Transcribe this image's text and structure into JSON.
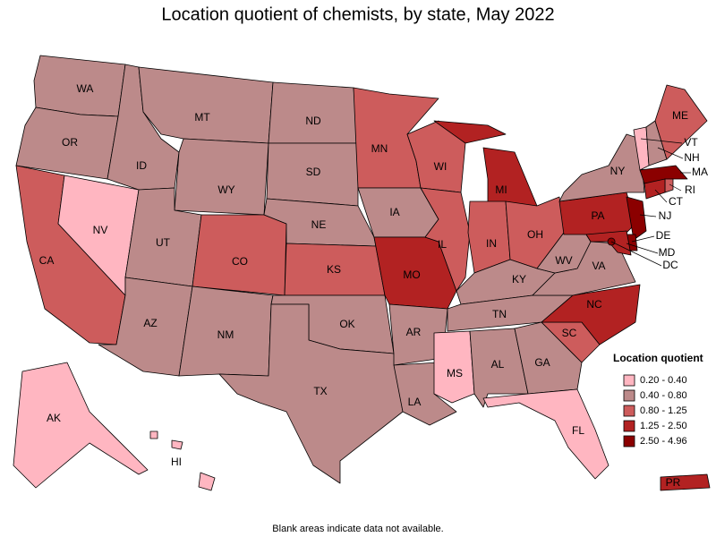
{
  "title": "Location quotient of chemists, by state, May 2022",
  "note": "Blank areas indicate data not available.",
  "legend": {
    "title": "Location quotient",
    "classes": [
      {
        "label": "0.20 - 0.40",
        "color": "#ffb6c1"
      },
      {
        "label": "0.40 - 0.80",
        "color": "#bc8a8a"
      },
      {
        "label": "0.80 - 1.25",
        "color": "#cd5c5c"
      },
      {
        "label": "1.25 - 2.50",
        "color": "#b22222"
      },
      {
        "label": "2.50 - 4.96",
        "color": "#8b0000"
      }
    ]
  },
  "states": [
    {
      "label": "WA",
      "class": 1
    },
    {
      "label": "OR",
      "class": 1
    },
    {
      "label": "CA",
      "class": 2
    },
    {
      "label": "NV",
      "class": 0
    },
    {
      "label": "ID",
      "class": 1
    },
    {
      "label": "MT",
      "class": 1
    },
    {
      "label": "WY",
      "class": 1
    },
    {
      "label": "UT",
      "class": 1
    },
    {
      "label": "AZ",
      "class": 1
    },
    {
      "label": "CO",
      "class": 2
    },
    {
      "label": "NM",
      "class": 1
    },
    {
      "label": "ND",
      "class": 1
    },
    {
      "label": "SD",
      "class": 1
    },
    {
      "label": "NE",
      "class": 1
    },
    {
      "label": "KS",
      "class": 2
    },
    {
      "label": "OK",
      "class": 1
    },
    {
      "label": "TX",
      "class": 1
    },
    {
      "label": "MN",
      "class": 2
    },
    {
      "label": "IA",
      "class": 1
    },
    {
      "label": "MO",
      "class": 3
    },
    {
      "label": "AR",
      "class": 1
    },
    {
      "label": "LA",
      "class": 1
    },
    {
      "label": "WI",
      "class": 2
    },
    {
      "label": "IL",
      "class": 2
    },
    {
      "label": "MI",
      "class": 3
    },
    {
      "label": "IN",
      "class": 2
    },
    {
      "label": "OH",
      "class": 2
    },
    {
      "label": "KY",
      "class": 1
    },
    {
      "label": "TN",
      "class": 1
    },
    {
      "label": "MS",
      "class": 0
    },
    {
      "label": "AL",
      "class": 1
    },
    {
      "label": "GA",
      "class": 1
    },
    {
      "label": "FL",
      "class": 0
    },
    {
      "label": "SC",
      "class": 2
    },
    {
      "label": "NC",
      "class": 3
    },
    {
      "label": "VA",
      "class": 1
    },
    {
      "label": "WV",
      "class": 1
    },
    {
      "label": "PA",
      "class": 3
    },
    {
      "label": "NY",
      "class": 1
    },
    {
      "label": "VT",
      "class": 0
    },
    {
      "label": "NH",
      "class": 1
    },
    {
      "label": "ME",
      "class": 2
    },
    {
      "label": "MA",
      "class": 4
    },
    {
      "label": "RI",
      "class": 2
    },
    {
      "label": "CT",
      "class": 3
    },
    {
      "label": "NJ",
      "class": 4
    },
    {
      "label": "DE",
      "class": 4
    },
    {
      "label": "MD",
      "class": 3
    },
    {
      "label": "DC",
      "class": 4
    },
    {
      "label": "AK",
      "class": 0
    },
    {
      "label": "HI",
      "class": 0
    },
    {
      "label": "PR",
      "class": 3
    }
  ]
}
